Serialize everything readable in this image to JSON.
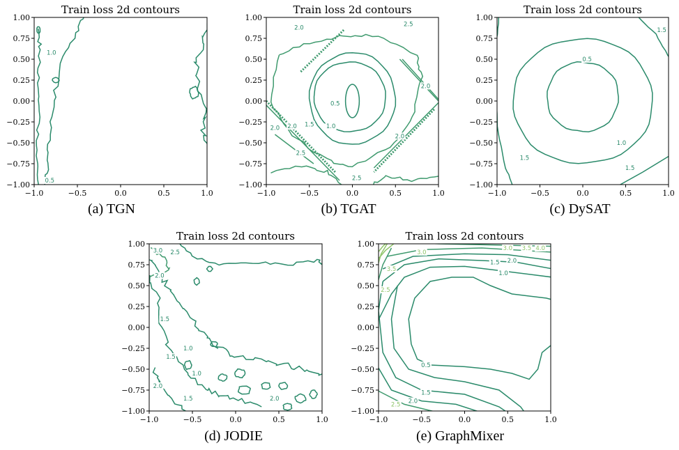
{
  "chart_data": [
    {
      "type": "contour",
      "title": "Train loss 2d contours",
      "caption": "(a) TGN",
      "xlim": [
        -1.0,
        1.0
      ],
      "ylim": [
        -1.0,
        1.0
      ],
      "x_ticks": [
        "−1.0",
        "−0.5",
        "0.0",
        "0.5",
        "1.0"
      ],
      "y_ticks": [
        "1.00",
        "0.75",
        "0.50",
        "0.25",
        "0.00",
        "−0.25",
        "−0.50",
        "−0.75",
        "−1.00"
      ],
      "contour_labels": [
        {
          "text": "1.0",
          "x": -0.8,
          "y": 0.58
        },
        {
          "text": "0.5",
          "x": -0.82,
          "y": -0.95
        }
      ],
      "grid": false,
      "legend": "none"
    },
    {
      "type": "contour",
      "title": "Train loss 2d contours",
      "caption": "(b) TGAT",
      "xlim": [
        -1.0,
        1.0
      ],
      "ylim": [
        -1.0,
        1.0
      ],
      "x_ticks": [
        "−1.0",
        "−0.5",
        "0.0",
        "0.5",
        "1.0"
      ],
      "y_ticks": [
        "1.00",
        "0.75",
        "0.50",
        "0.25",
        "0.00",
        "−0.25",
        "−0.50",
        "−0.75",
        "−1.00"
      ],
      "contour_levels": [
        0.5,
        1.0,
        1.5,
        2.0,
        2.5
      ],
      "contour_labels": [
        {
          "text": "0.5",
          "x": -0.2,
          "y": -0.03
        },
        {
          "text": "1.0",
          "x": -0.25,
          "y": -0.3
        },
        {
          "text": "1.5",
          "x": -0.5,
          "y": -0.28
        },
        {
          "text": "2.0",
          "x": 0.55,
          "y": -0.42
        },
        {
          "text": "2.0",
          "x": -0.7,
          "y": -0.3
        },
        {
          "text": "2.0",
          "x": -0.62,
          "y": 0.88
        },
        {
          "text": "2.5",
          "x": 0.65,
          "y": 0.92
        },
        {
          "text": "2.0",
          "x": 0.85,
          "y": 0.18
        },
        {
          "text": "2.0",
          "x": -0.9,
          "y": -0.32
        },
        {
          "text": "2.5",
          "x": -0.6,
          "y": -0.62
        },
        {
          "text": "2.5",
          "x": 0.05,
          "y": -0.92
        }
      ],
      "grid": false,
      "legend": "none"
    },
    {
      "type": "contour",
      "title": "Train loss 2d contours",
      "caption": "(c) DySAT",
      "xlim": [
        -1.0,
        1.0
      ],
      "ylim": [
        -1.0,
        1.0
      ],
      "x_ticks": [
        "−1.0",
        "−0.5",
        "0.0",
        "0.5",
        "1.0"
      ],
      "y_ticks": [
        "1.00",
        "0.75",
        "0.50",
        "0.25",
        "0.00",
        "−0.25",
        "−0.50",
        "−0.75",
        "−1.00"
      ],
      "contour_levels": [
        0.5,
        1.0,
        1.5
      ],
      "contour_labels": [
        {
          "text": "0.5",
          "x": 0.05,
          "y": 0.5
        },
        {
          "text": "1.0",
          "x": 0.45,
          "y": -0.5
        },
        {
          "text": "1.5",
          "x": 0.92,
          "y": 0.85
        },
        {
          "text": "1.5",
          "x": -0.68,
          "y": -0.68
        },
        {
          "text": "1.5",
          "x": 0.55,
          "y": -0.8
        }
      ],
      "grid": false,
      "legend": "none"
    },
    {
      "type": "contour",
      "title": "Train loss 2d contours",
      "caption": "(d) JODIE",
      "xlim": [
        -1.0,
        1.0
      ],
      "ylim": [
        -1.0,
        1.0
      ],
      "x_ticks": [
        "−1.0",
        "−0.5",
        "0.0",
        "0.5",
        "1.0"
      ],
      "y_ticks": [
        "1.00",
        "0.75",
        "0.50",
        "0.25",
        "0.00",
        "−0.25",
        "−0.50",
        "−0.75",
        "−1.00"
      ],
      "contour_levels": [
        1.0,
        1.5,
        2.0,
        2.5,
        3.0
      ],
      "contour_labels": [
        {
          "text": "3.0",
          "x": -0.9,
          "y": 0.92
        },
        {
          "text": "2.5",
          "x": -0.7,
          "y": 0.9
        },
        {
          "text": "2.0",
          "x": -0.88,
          "y": 0.62
        },
        {
          "text": "1.5",
          "x": -0.82,
          "y": 0.1
        },
        {
          "text": "1.0",
          "x": -0.55,
          "y": -0.25
        },
        {
          "text": "1.5",
          "x": -0.75,
          "y": -0.35
        },
        {
          "text": "1.0",
          "x": -0.45,
          "y": -0.55
        },
        {
          "text": "2.0",
          "x": -0.9,
          "y": -0.7
        },
        {
          "text": "1.5",
          "x": -0.55,
          "y": -0.85
        },
        {
          "text": "2.0",
          "x": 0.45,
          "y": -0.85
        }
      ],
      "grid": false,
      "legend": "none"
    },
    {
      "type": "contour",
      "title": "Train loss 2d contours",
      "caption": "(e) GraphMixer",
      "xlim": [
        -1.0,
        1.0
      ],
      "ylim": [
        -1.0,
        1.0
      ],
      "x_ticks": [
        "−1.0",
        "−0.5",
        "0.0",
        "0.5",
        "1.0"
      ],
      "y_ticks": [
        "1.00",
        "0.75",
        "0.50",
        "0.25",
        "0.00",
        "−0.25",
        "−0.50",
        "−0.75",
        "−1.00"
      ],
      "contour_levels": [
        0.5,
        1.0,
        1.5,
        2.0,
        2.5,
        3.0,
        3.5,
        4.0
      ],
      "contour_labels": [
        {
          "text": "0.5",
          "x": -0.45,
          "y": -0.45
        },
        {
          "text": "1.0",
          "x": 0.45,
          "y": 0.65
        },
        {
          "text": "1.5",
          "x": 0.35,
          "y": 0.78
        },
        {
          "text": "2.0",
          "x": 0.55,
          "y": 0.8
        },
        {
          "text": "3.0",
          "x": 0.5,
          "y": 0.95
        },
        {
          "text": "3.5",
          "x": 0.72,
          "y": 0.95
        },
        {
          "text": "4.0",
          "x": 0.88,
          "y": 0.95
        },
        {
          "text": "3.0",
          "x": -0.5,
          "y": 0.9
        },
        {
          "text": "3.5",
          "x": -0.85,
          "y": 0.7
        },
        {
          "text": "2.5",
          "x": -0.92,
          "y": 0.45
        },
        {
          "text": "1.5",
          "x": -0.45,
          "y": -0.78
        },
        {
          "text": "2.0",
          "x": -0.6,
          "y": -0.88
        },
        {
          "text": "2.5",
          "x": -0.8,
          "y": -0.92
        }
      ],
      "grid": false,
      "legend": "none"
    }
  ],
  "colors": {
    "contour_dark": "#2a8a6a",
    "contour_mid": "#3f9a6e",
    "contour_light": "#8fc46a",
    "axis": "#000000"
  }
}
